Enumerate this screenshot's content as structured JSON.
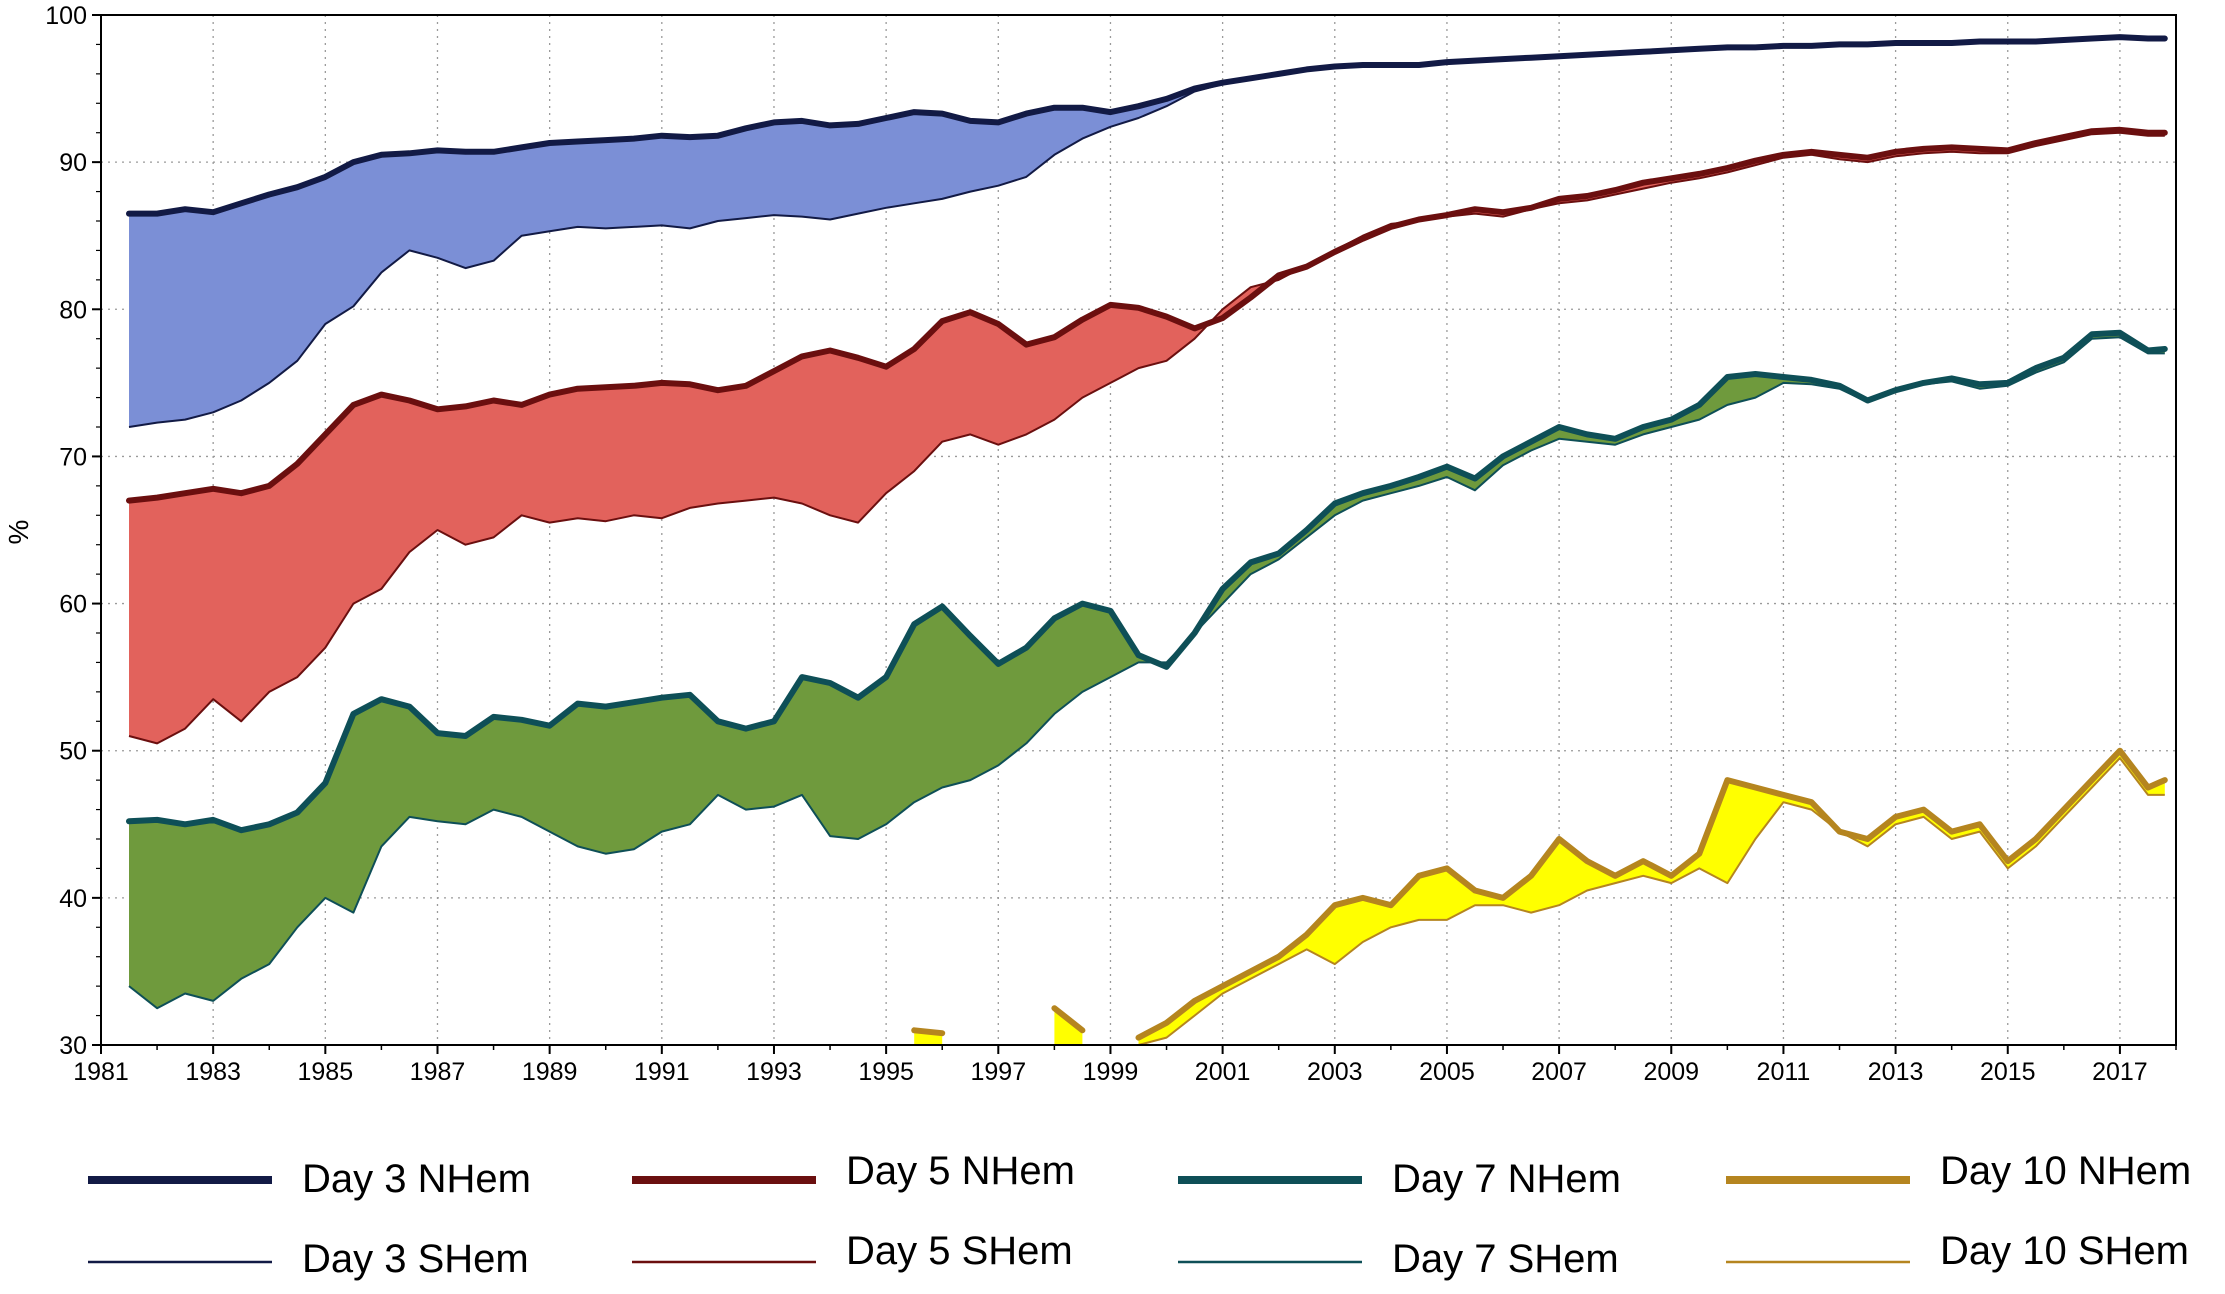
{
  "chart_data": {
    "type": "area",
    "title": "",
    "xlabel": "",
    "ylabel": "%",
    "xlim": [
      1981,
      2018
    ],
    "ylim": [
      30,
      100
    ],
    "grid": true,
    "x_ticks": [
      "1981",
      "1983",
      "1985",
      "1987",
      "1989",
      "1991",
      "1993",
      "1995",
      "1997",
      "1999",
      "2001",
      "2003",
      "2005",
      "2007",
      "2009",
      "2011",
      "2013",
      "2015",
      "2017"
    ],
    "y_ticks": [
      "30",
      "40",
      "50",
      "60",
      "70",
      "80",
      "90",
      "100"
    ],
    "legend_position": "bottom",
    "x": [
      1981.5,
      1982,
      1982.5,
      1983,
      1983.5,
      1984,
      1984.5,
      1985,
      1985.5,
      1986,
      1986.5,
      1987,
      1987.5,
      1988,
      1988.5,
      1989,
      1989.5,
      1990,
      1990.5,
      1991,
      1991.5,
      1992,
      1992.5,
      1993,
      1993.5,
      1994,
      1994.5,
      1995,
      1995.5,
      1996,
      1996.5,
      1997,
      1997.5,
      1998,
      1998.5,
      1999,
      1999.5,
      2000,
      2000.5,
      2001,
      2001.5,
      2002,
      2002.5,
      2003,
      2003.5,
      2004,
      2004.5,
      2005,
      2005.5,
      2006,
      2006.5,
      2007,
      2007.5,
      2008,
      2008.5,
      2009,
      2009.5,
      2010,
      2010.5,
      2011,
      2011.5,
      2012,
      2012.5,
      2013,
      2013.5,
      2014,
      2014.5,
      2015,
      2015.5,
      2016,
      2016.5,
      2017,
      2017.5,
      2017.8
    ],
    "bands": [
      {
        "name": "Day 3",
        "fill": "#7b8fd6",
        "color": "#121a45",
        "nhem": [
          86.5,
          86.5,
          86.8,
          86.6,
          87.2,
          87.8,
          88.3,
          89.0,
          90.0,
          90.5,
          90.6,
          90.8,
          90.7,
          90.7,
          91.0,
          91.3,
          91.4,
          91.5,
          91.6,
          91.8,
          91.7,
          91.8,
          92.3,
          92.7,
          92.8,
          92.5,
          92.6,
          93.0,
          93.4,
          93.3,
          92.8,
          92.7,
          93.3,
          93.7,
          93.7,
          93.4,
          93.8,
          94.3,
          95.0,
          95.4,
          95.7,
          96.0,
          96.3,
          96.5,
          96.6,
          96.6,
          96.6,
          96.8,
          96.9,
          97.0,
          97.1,
          97.2,
          97.3,
          97.4,
          97.5,
          97.6,
          97.7,
          97.8,
          97.8,
          97.9,
          97.9,
          98.0,
          98.0,
          98.1,
          98.1,
          98.1,
          98.2,
          98.2,
          98.2,
          98.3,
          98.4,
          98.5,
          98.4,
          98.4
        ],
        "shem": [
          72.0,
          72.3,
          72.5,
          73.0,
          73.8,
          75.0,
          76.5,
          79.0,
          80.2,
          82.5,
          84.0,
          83.5,
          82.8,
          83.3,
          85.0,
          85.3,
          85.6,
          85.5,
          85.6,
          85.7,
          85.5,
          86.0,
          86.2,
          86.4,
          86.3,
          86.1,
          86.5,
          86.9,
          87.2,
          87.5,
          88.0,
          88.4,
          89.0,
          90.5,
          91.6,
          92.4,
          93.0,
          93.8,
          94.8,
          95.3,
          95.6,
          95.9,
          96.2,
          96.4,
          96.6,
          96.6,
          96.7,
          96.8,
          96.8,
          96.9,
          97.0,
          97.2,
          97.3,
          97.4,
          97.4,
          97.5,
          97.6,
          97.7,
          97.8,
          97.9,
          97.9,
          98.0,
          98.0,
          98.1,
          98.1,
          98.1,
          98.2,
          98.2,
          98.2,
          98.3,
          98.4,
          98.5,
          98.4,
          98.4
        ]
      },
      {
        "name": "Day 5",
        "fill": "#e2625c",
        "color": "#6b0f0f",
        "nhem": [
          67.0,
          67.2,
          67.5,
          67.8,
          67.5,
          68.0,
          69.5,
          71.5,
          73.5,
          74.2,
          73.8,
          73.2,
          73.4,
          73.8,
          73.5,
          74.2,
          74.6,
          74.7,
          74.8,
          75.0,
          74.9,
          74.5,
          74.8,
          75.8,
          76.8,
          77.2,
          76.7,
          76.1,
          77.3,
          79.2,
          79.8,
          79.0,
          77.6,
          78.1,
          79.3,
          80.3,
          80.1,
          79.5,
          78.7,
          79.4,
          80.8,
          82.3,
          82.9,
          83.9,
          84.8,
          85.6,
          86.1,
          86.4,
          86.8,
          86.6,
          86.9,
          87.5,
          87.7,
          88.1,
          88.6,
          88.9,
          89.2,
          89.6,
          90.1,
          90.5,
          90.7,
          90.5,
          90.3,
          90.7,
          90.9,
          91.0,
          90.9,
          90.8,
          91.3,
          91.7,
          92.1,
          92.2,
          92.0,
          92.0
        ],
        "shem": [
          51.0,
          50.5,
          51.5,
          53.5,
          52.0,
          54.0,
          55.0,
          57.0,
          60.0,
          61.0,
          63.5,
          65.0,
          64.0,
          64.5,
          66.0,
          65.5,
          65.8,
          65.6,
          66.0,
          65.8,
          66.5,
          66.8,
          67.0,
          67.2,
          66.8,
          66.0,
          65.5,
          67.5,
          69.0,
          71.0,
          71.5,
          70.8,
          71.5,
          72.5,
          74.0,
          75.0,
          76.0,
          76.5,
          78.0,
          80.0,
          81.5,
          82.0,
          83.0,
          84.0,
          85.0,
          85.8,
          86.0,
          86.3,
          86.5,
          86.3,
          86.8,
          87.2,
          87.4,
          87.8,
          88.2,
          88.6,
          88.9,
          89.3,
          89.8,
          90.3,
          90.5,
          90.2,
          90.0,
          90.4,
          90.6,
          90.7,
          90.6,
          90.6,
          91.1,
          91.5,
          91.9,
          92.0,
          91.8,
          91.8
        ]
      },
      {
        "name": "Day 7",
        "fill": "#6f9a3d",
        "color": "#0e4f57",
        "nhem": [
          45.2,
          45.3,
          45.0,
          45.3,
          44.6,
          45.0,
          45.8,
          47.8,
          52.5,
          53.5,
          53.0,
          51.2,
          51.0,
          52.3,
          52.1,
          51.7,
          53.2,
          53.0,
          53.3,
          53.6,
          53.8,
          52.0,
          51.5,
          52.0,
          55.0,
          54.6,
          53.6,
          55.0,
          58.6,
          59.8,
          57.8,
          55.9,
          57.0,
          59.0,
          60.0,
          59.5,
          56.5,
          55.7,
          58.0,
          61.0,
          62.8,
          63.4,
          65.0,
          66.8,
          67.5,
          68.0,
          68.6,
          69.3,
          68.5,
          70.0,
          71.0,
          72.0,
          71.5,
          71.2,
          72.0,
          72.5,
          73.5,
          75.4,
          75.6,
          75.4,
          75.2,
          74.8,
          73.8,
          74.5,
          75.0,
          75.3,
          74.9,
          75.0,
          76.0,
          76.7,
          78.3,
          78.4,
          77.2,
          77.3
        ],
        "shem": [
          34.0,
          32.5,
          33.5,
          33.0,
          34.5,
          35.5,
          38.0,
          40.0,
          39.0,
          43.5,
          45.5,
          45.2,
          45.0,
          46.0,
          45.5,
          44.5,
          43.5,
          43.0,
          43.3,
          44.5,
          45.0,
          47.0,
          46.0,
          46.2,
          47.0,
          44.2,
          44.0,
          45.0,
          46.5,
          47.5,
          48.0,
          49.0,
          50.5,
          52.5,
          54.0,
          55.0,
          56.0,
          56.0,
          58.0,
          60.0,
          62.0,
          63.0,
          64.5,
          66.0,
          67.0,
          67.5,
          68.0,
          68.6,
          67.7,
          69.4,
          70.4,
          71.2,
          71.0,
          70.8,
          71.5,
          72.0,
          72.5,
          73.5,
          74.0,
          75.0,
          74.9,
          74.6,
          73.7,
          74.4,
          74.9,
          75.1,
          74.6,
          74.8,
          75.7,
          76.4,
          78.0,
          78.1,
          77.0,
          77.0
        ]
      },
      {
        "name": "Day 10",
        "fill": "#ffff00",
        "color": "#b5851f",
        "nhem": [
          null,
          null,
          null,
          null,
          null,
          null,
          null,
          null,
          null,
          null,
          null,
          null,
          null,
          null,
          null,
          null,
          null,
          null,
          null,
          null,
          null,
          null,
          null,
          null,
          null,
          null,
          null,
          null,
          31.0,
          30.8,
          null,
          null,
          null,
          32.5,
          31.0,
          null,
          30.5,
          31.5,
          33.0,
          34.0,
          35.0,
          36.0,
          37.5,
          39.5,
          40.0,
          39.5,
          41.5,
          42.0,
          40.5,
          40.0,
          41.5,
          44.0,
          42.5,
          41.5,
          42.5,
          41.5,
          43.0,
          48.0,
          47.5,
          47.0,
          46.5,
          44.5,
          44.0,
          45.5,
          46.0,
          44.5,
          45.0,
          42.5,
          44.0,
          46.0,
          48.0,
          50.0,
          47.5,
          48.0
        ],
        "shem": [
          null,
          null,
          null,
          null,
          null,
          null,
          null,
          null,
          null,
          null,
          null,
          null,
          null,
          null,
          null,
          null,
          null,
          null,
          null,
          null,
          null,
          null,
          null,
          null,
          null,
          null,
          null,
          null,
          30.0,
          30.0,
          null,
          null,
          null,
          30.0,
          30.0,
          null,
          30.0,
          30.5,
          32.0,
          33.5,
          34.5,
          35.5,
          36.5,
          35.5,
          37.0,
          38.0,
          38.5,
          38.5,
          39.5,
          39.5,
          39.0,
          39.5,
          40.5,
          41.0,
          41.5,
          41.0,
          42.0,
          41.0,
          44.0,
          46.5,
          46.0,
          44.5,
          43.5,
          45.0,
          45.5,
          44.0,
          44.5,
          42.0,
          43.5,
          45.5,
          47.5,
          49.5,
          47.0,
          47.0
        ]
      }
    ]
  },
  "legend": {
    "items": [
      {
        "label": "Day 3 NHem",
        "color": "#121a45",
        "style": "thick"
      },
      {
        "label": "Day 5 NHem",
        "color": "#6b0f0f",
        "style": "thick"
      },
      {
        "label": "Day 7 NHem",
        "color": "#0e4f57",
        "style": "thick"
      },
      {
        "label": "Day 10 NHem",
        "color": "#b5851f",
        "style": "thick"
      },
      {
        "label": "Day 3 SHem",
        "color": "#121a45",
        "style": "thin"
      },
      {
        "label": "Day 5 SHem",
        "color": "#6b0f0f",
        "style": "thin"
      },
      {
        "label": "Day 7 SHem",
        "color": "#0e4f57",
        "style": "thin"
      },
      {
        "label": "Day 10 SHem",
        "color": "#b5851f",
        "style": "thin"
      }
    ]
  }
}
